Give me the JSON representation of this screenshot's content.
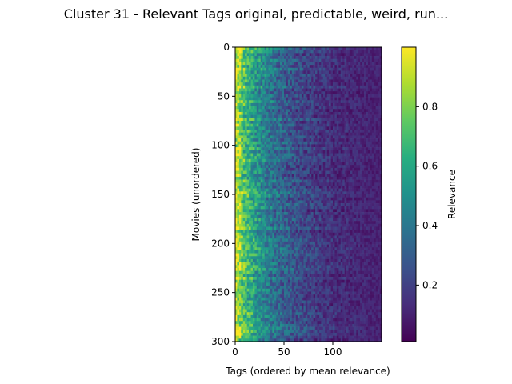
{
  "chart_data": {
    "type": "heatmap",
    "title": "Cluster 31 - Relevant Tags original, predictable, weird, run...",
    "xlabel": "Tags (ordered by mean relevance)",
    "ylabel": "Movies (unordered)",
    "xlim": [
      0,
      150
    ],
    "ylim": [
      300,
      0
    ],
    "n_rows": 300,
    "n_cols": 150,
    "x_ticks": [
      0,
      50,
      100
    ],
    "y_ticks": [
      0,
      50,
      100,
      150,
      200,
      250,
      300
    ],
    "colorbar": {
      "label": "Relevance",
      "colormap": "viridis",
      "range": [
        0.01,
        1.0
      ],
      "ticks": [
        0.2,
        0.4,
        0.6,
        0.8
      ]
    },
    "pattern": "relevance is highest for the leftmost tags (about 0.8-1.0) and decays toward about 0.05 at the rightmost tags, with noise across movies"
  }
}
